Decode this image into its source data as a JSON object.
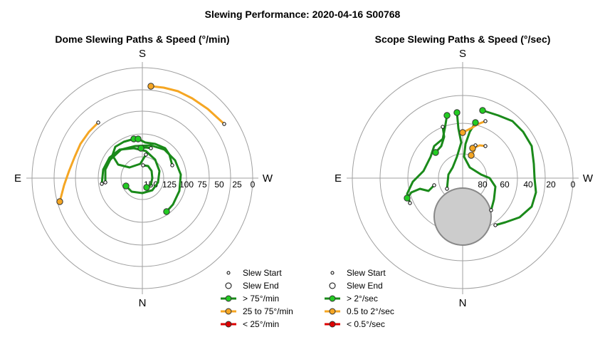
{
  "title": "Slewing Performance: 2020-04-16 S00768",
  "colors": {
    "grid": "#a0a0a0",
    "fast": "#1a8a1a",
    "fast_marker": "#22cc22",
    "medium": "#f5a623",
    "medium_marker": "#f5a623",
    "slow": "#dd0000",
    "slow_marker": "#dd0000",
    "obscured_fill": "#cccccc",
    "obscured_edge": "#888888"
  },
  "chart_data": [
    {
      "id": "dome",
      "type": "polar-paths",
      "title": "Dome Slewing Paths & Speed (°/min)",
      "compass": {
        "top": "S",
        "bottom": "N",
        "left": "E",
        "right": "W"
      },
      "radial_ticks": [
        "150",
        "125",
        "100",
        "75",
        "50",
        "25",
        "0"
      ],
      "radial_axis": {
        "label_at_center": "150",
        "outer_value": 0,
        "ring_step": 25
      },
      "legend": [
        {
          "kind": "start",
          "label": "Slew Start"
        },
        {
          "kind": "end",
          "label": "Slew End"
        },
        {
          "kind": "fast",
          "label": "> 75°/min"
        },
        {
          "kind": "medium",
          "label": "25 to 75°/min"
        },
        {
          "kind": "slow",
          "label": "< 25°/min"
        }
      ],
      "paths": [
        {
          "speed": "medium",
          "points": [
            [
              12,
              129
            ],
            [
              30,
              127
            ],
            [
              50,
              122
            ],
            [
              70,
              112
            ],
            [
              92,
              97
            ],
            [
              115,
              76
            ]
          ]
        },
        {
          "speed": "medium",
          "points": [
            [
              -116,
              -33
            ],
            [
              -110,
              -10
            ],
            [
              -103,
              10
            ],
            [
              -95,
              30
            ],
            [
              -87,
              48
            ],
            [
              -75,
              65
            ],
            [
              -62,
              78
            ]
          ]
        },
        {
          "speed": "fast",
          "points": [
            [
              -23,
              -11
            ],
            [
              -15,
              -19
            ],
            [
              0,
              -21
            ],
            [
              14,
              -17
            ],
            [
              22,
              -6
            ],
            [
              24,
              10
            ],
            [
              18,
              26
            ],
            [
              5,
              38
            ],
            [
              -12,
              42
            ],
            [
              -32,
              40
            ],
            [
              -46,
              29
            ],
            [
              -55,
              12
            ],
            [
              -57,
              -8
            ]
          ]
        },
        {
          "speed": "fast",
          "points": [
            [
              -12,
              55
            ],
            [
              -26,
              51
            ],
            [
              -38,
              44
            ],
            [
              -42,
              32
            ],
            [
              -34,
              19
            ],
            [
              -18,
              15
            ],
            [
              -3,
              20
            ],
            [
              5,
              33
            ]
          ]
        },
        {
          "speed": "fast",
          "points": [
            [
              -6,
              55
            ],
            [
              4,
              50
            ],
            [
              18,
              48
            ],
            [
              32,
              42
            ],
            [
              38,
              33
            ],
            [
              42,
              18
            ]
          ]
        },
        {
          "speed": "fast",
          "points": [
            [
              34,
              -47
            ],
            [
              43,
              -37
            ],
            [
              52,
              -18
            ],
            [
              54,
              5
            ],
            [
              46,
              25
            ],
            [
              31,
              40
            ],
            [
              12,
              46
            ],
            [
              -10,
              45
            ],
            [
              -30,
              40
            ],
            [
              -45,
              26
            ],
            [
              -52,
              12
            ],
            [
              -52,
              -6
            ]
          ]
        },
        {
          "speed": "fast",
          "points": [
            [
              1,
              18
            ],
            [
              8,
              17
            ],
            [
              13,
              10
            ],
            [
              14,
              0
            ],
            [
              12,
              -9
            ],
            [
              6,
              -13
            ]
          ]
        },
        {
          "speed": "fast",
          "points": [
            [
              -2,
              42
            ],
            [
              5,
              43
            ],
            [
              12,
              42
            ]
          ]
        }
      ],
      "starts": [
        [
          115,
          76
        ],
        [
          -62,
          78
        ],
        [
          -57,
          -8
        ],
        [
          5,
          33
        ],
        [
          42,
          18
        ],
        [
          -52,
          -6
        ],
        [
          1,
          18
        ],
        [
          12,
          42
        ]
      ],
      "ends": [
        [
          12,
          129
        ],
        [
          -116,
          -33
        ],
        [
          -23,
          -11
        ],
        [
          -12,
          55
        ],
        [
          -6,
          55
        ],
        [
          34,
          -47
        ],
        [
          6,
          -13
        ],
        [
          -2,
          42
        ]
      ]
    },
    {
      "id": "scope",
      "type": "polar-paths",
      "title": "Scope Slewing Paths & Speed (°/sec)",
      "compass": {
        "top": "S",
        "bottom": "N",
        "left": "E",
        "right": "W"
      },
      "radial_ticks": [
        "80",
        "60",
        "40",
        "20",
        "0"
      ],
      "radial_axis": {
        "outer_value": 0,
        "center_value": 90,
        "ring_step": 20
      },
      "obscured_region": {
        "center_alt": 45,
        "center_az": 0,
        "radius_deg": 22
      },
      "legend": [
        {
          "kind": "start",
          "label": "Slew Start"
        },
        {
          "kind": "end",
          "label": "Slew End"
        },
        {
          "kind": "fast",
          "label": "> 2°/sec"
        },
        {
          "kind": "medium",
          "label": "0.5 to 2°/sec"
        },
        {
          "kind": "slow",
          "label": "< 0.5°/sec"
        }
      ],
      "paths": [
        {
          "speed": "fast",
          "points": [
            [
              28,
              95
            ],
            [
              50,
              88
            ],
            [
              70,
              80
            ],
            [
              85,
              65
            ],
            [
              97,
              45
            ],
            [
              100,
              20
            ],
            [
              101,
              0
            ],
            [
              103,
              -20
            ],
            [
              97,
              -40
            ],
            [
              80,
              -55
            ],
            [
              60,
              -62
            ],
            [
              46,
              -66
            ]
          ]
        },
        {
          "speed": "fast",
          "points": [
            [
              -22,
              88
            ],
            [
              -25,
              70
            ],
            [
              -28,
              55
            ],
            [
              -40,
              45
            ],
            [
              -45,
              30
            ],
            [
              -55,
              10
            ],
            [
              -70,
              -5
            ],
            [
              -78,
              -22
            ],
            [
              -74,
              -35
            ]
          ]
        },
        {
          "speed": "fast",
          "points": [
            [
              18,
              78
            ],
            [
              10,
              65
            ],
            [
              4,
              48
            ],
            [
              2,
              30
            ],
            [
              10,
              15
            ],
            [
              26,
              5
            ],
            [
              38,
              0
            ],
            [
              46,
              -12
            ],
            [
              44,
              -30
            ],
            [
              40,
              -45
            ]
          ]
        },
        {
          "speed": "fast",
          "points": [
            [
              -8,
              92
            ],
            [
              -6,
              70
            ],
            [
              -2,
              50
            ],
            [
              -8,
              30
            ],
            [
              -14,
              15
            ],
            [
              -20,
              5
            ],
            [
              -22,
              -15
            ]
          ]
        },
        {
          "speed": "fast",
          "points": [
            [
              -38,
              36
            ],
            [
              -30,
              45
            ],
            [
              -26,
              58
            ],
            [
              -28,
              72
            ]
          ]
        },
        {
          "speed": "fast",
          "points": [
            [
              -78,
              -28
            ],
            [
              -72,
              -20
            ],
            [
              -60,
              -15
            ],
            [
              -48,
              -18
            ],
            [
              -40,
              -10
            ]
          ]
        }
      ],
      "medium_paths": [
        {
          "speed": "medium",
          "points": [
            [
              0,
              64
            ],
            [
              12,
              70
            ],
            [
              22,
              76
            ],
            [
              32,
              80
            ]
          ]
        },
        {
          "speed": "medium",
          "points": [
            [
              14,
              42
            ],
            [
              24,
              46
            ],
            [
              32,
              45
            ]
          ]
        },
        {
          "speed": "medium",
          "points": [
            [
              12,
              32
            ],
            [
              16,
              38
            ],
            [
              18,
              46
            ]
          ]
        }
      ],
      "starts": [
        [
          46,
          -66
        ],
        [
          -74,
          -35
        ],
        [
          40,
          -45
        ],
        [
          -22,
          -15
        ],
        [
          -28,
          72
        ],
        [
          -40,
          -10
        ],
        [
          32,
          80
        ],
        [
          32,
          45
        ],
        [
          18,
          46
        ]
      ],
      "ends": [
        [
          28,
          95
        ],
        [
          -22,
          88
        ],
        [
          18,
          78
        ],
        [
          -8,
          92
        ],
        [
          -38,
          36
        ],
        [
          -78,
          -28
        ]
      ],
      "medium_ends": [
        [
          0,
          64
        ],
        [
          14,
          42
        ],
        [
          12,
          32
        ]
      ]
    }
  ]
}
